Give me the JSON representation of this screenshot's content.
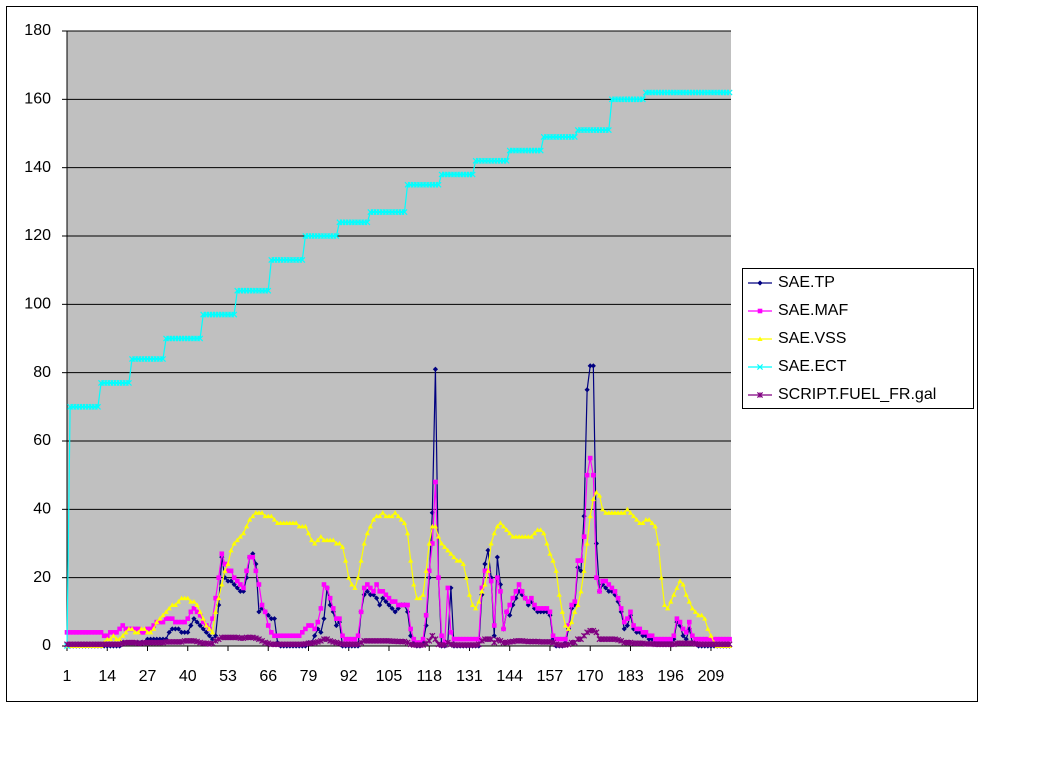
{
  "chart_data": {
    "type": "line",
    "categories": [
      1,
      null,
      null,
      null,
      null,
      null,
      null,
      null,
      null,
      null,
      null,
      null,
      null,
      14,
      null,
      null,
      null,
      null,
      null,
      null,
      null,
      null,
      null,
      null,
      null,
      null,
      27,
      null,
      null,
      null,
      null,
      null,
      null,
      null,
      null,
      null,
      null,
      null,
      null,
      40,
      null,
      null,
      null,
      null,
      null,
      null,
      null,
      null,
      null,
      null,
      null,
      null,
      53,
      null,
      null,
      null,
      null,
      null,
      null,
      null,
      null,
      null,
      null,
      null,
      null,
      66,
      null,
      null,
      null,
      null,
      null,
      null,
      null,
      null,
      null,
      null,
      null,
      null,
      79,
      null,
      null,
      null,
      null,
      null,
      null,
      null,
      null,
      null,
      null,
      null,
      null,
      92,
      null,
      null,
      null,
      null,
      null,
      null,
      null,
      null,
      null,
      null,
      null,
      null,
      105,
      null,
      null,
      null,
      null,
      null,
      null,
      null,
      null,
      null,
      null,
      null,
      null,
      118,
      null,
      null,
      null,
      null,
      null,
      null,
      null,
      null,
      null,
      null,
      null,
      null,
      131,
      null,
      null,
      null,
      null,
      null,
      null,
      null,
      null,
      null,
      null,
      null,
      null,
      144,
      null,
      null,
      null,
      null,
      null,
      null,
      null,
      null,
      null,
      null,
      null,
      null,
      157,
      null,
      null,
      null,
      null,
      null,
      null,
      null,
      null,
      null,
      null,
      null,
      null,
      170,
      null,
      null,
      null,
      null,
      null,
      null,
      null,
      null,
      null,
      null,
      null,
      null,
      183,
      null,
      null,
      null,
      null,
      null,
      null,
      null,
      null,
      null,
      null,
      null,
      null,
      196,
      null,
      null,
      null,
      null,
      null,
      null,
      null,
      null,
      null,
      null,
      null,
      null,
      209,
      null,
      null,
      null,
      null,
      null,
      null
    ],
    "series": [
      {
        "name": "SAE.TP",
        "color": "#000080",
        "marker": "diamond",
        "values": [
          0,
          0,
          0,
          0,
          0,
          0,
          0,
          0,
          0,
          0,
          0,
          0,
          0,
          0,
          0,
          0,
          0,
          0,
          1,
          1,
          1,
          1,
          1,
          1,
          1,
          1,
          2,
          2,
          2,
          2,
          2,
          2,
          2,
          4,
          5,
          5,
          5,
          4,
          4,
          4,
          6,
          8,
          7,
          6,
          5,
          4,
          3,
          2,
          3,
          12,
          26,
          20,
          19,
          19,
          18,
          17,
          16,
          16,
          20,
          26,
          27,
          24,
          10,
          11,
          10,
          9,
          8,
          8,
          1,
          0,
          0,
          0,
          0,
          0,
          0,
          0,
          0,
          0,
          1,
          1,
          3,
          5,
          4,
          8,
          17,
          12,
          10,
          6,
          7,
          0,
          0,
          0,
          0,
          0,
          0,
          10,
          15,
          16,
          15,
          15,
          14,
          12,
          14,
          13,
          12,
          11,
          10,
          11,
          12,
          12,
          10,
          3,
          1,
          0,
          0,
          1,
          6,
          20,
          39,
          81,
          20,
          0,
          0,
          1,
          17,
          0,
          0,
          0,
          0,
          0,
          0,
          0,
          0,
          0,
          15,
          24,
          28,
          20,
          3,
          26,
          18,
          5,
          10,
          9,
          12,
          14,
          16,
          15,
          14,
          12,
          13,
          11,
          10,
          10,
          10,
          10,
          9,
          2,
          0,
          0,
          0,
          1,
          5,
          11,
          12,
          23,
          22,
          38,
          75,
          82,
          82,
          30,
          16,
          18,
          17,
          16,
          16,
          15,
          13,
          10,
          5,
          6,
          9,
          5,
          4,
          4,
          3,
          3,
          2,
          2,
          1,
          1,
          1,
          1,
          1,
          1,
          2,
          7,
          6,
          3,
          2,
          5,
          1,
          1,
          0,
          0,
          0,
          0,
          0,
          0,
          0,
          0,
          0,
          0,
          0
        ]
      },
      {
        "name": "SAE.MAF",
        "color": "#ff00ff",
        "marker": "square",
        "values": [
          4,
          4,
          4,
          4,
          4,
          4,
          4,
          4,
          4,
          4,
          4,
          4,
          3,
          3,
          4,
          4,
          4,
          5,
          6,
          5,
          5,
          5,
          5,
          5,
          4,
          4,
          5,
          5,
          6,
          7,
          7,
          7,
          8,
          8,
          8,
          7,
          7,
          7,
          7,
          8,
          10,
          11,
          10,
          9,
          7,
          6,
          5,
          8,
          14,
          20,
          27,
          24,
          22,
          22,
          20,
          19,
          18,
          17,
          22,
          26,
          26,
          22,
          18,
          12,
          10,
          6,
          4,
          3,
          3,
          3,
          3,
          3,
          3,
          3,
          3,
          3,
          4,
          5,
          6,
          6,
          5,
          7,
          11,
          18,
          17,
          14,
          11,
          8,
          8,
          3,
          2,
          2,
          2,
          2,
          3,
          10,
          17,
          18,
          17,
          16,
          18,
          16,
          16,
          15,
          14,
          13,
          13,
          12,
          12,
          12,
          12,
          5,
          2,
          1,
          1,
          2,
          9,
          22,
          30,
          48,
          20,
          3,
          1,
          17,
          4,
          2,
          2,
          2,
          2,
          2,
          2,
          2,
          2,
          2,
          17,
          22,
          22,
          19,
          6,
          20,
          16,
          5,
          10,
          12,
          14,
          16,
          18,
          16,
          14,
          13,
          14,
          12,
          11,
          11,
          11,
          11,
          10,
          3,
          2,
          2,
          2,
          2,
          6,
          12,
          13,
          25,
          25,
          32,
          50,
          55,
          50,
          20,
          16,
          19,
          19,
          18,
          17,
          16,
          14,
          11,
          7,
          8,
          10,
          6,
          5,
          5,
          4,
          4,
          3,
          3,
          2,
          2,
          2,
          2,
          2,
          2,
          3,
          8,
          7,
          5,
          4,
          7,
          3,
          2,
          2,
          2,
          2,
          2,
          2,
          2,
          2,
          2,
          2,
          2,
          2
        ]
      },
      {
        "name": "SAE.VSS",
        "color": "#ffff00",
        "marker": "triangle",
        "values": [
          0,
          0,
          0,
          0,
          0,
          0,
          0,
          0,
          0,
          0,
          0,
          0,
          1,
          2,
          2,
          3,
          2,
          2,
          3,
          4,
          5,
          5,
          4,
          4,
          5,
          5,
          4,
          4,
          5,
          7,
          8,
          9,
          10,
          11,
          12,
          12,
          13,
          14,
          14,
          14,
          13,
          13,
          12,
          10,
          8,
          6,
          5,
          4,
          10,
          14,
          18,
          22,
          24,
          28,
          30,
          31,
          32,
          33,
          35,
          37,
          38,
          39,
          39,
          39,
          38,
          38,
          38,
          37,
          36,
          36,
          36,
          36,
          36,
          36,
          36,
          35,
          35,
          35,
          33,
          31,
          30,
          31,
          32,
          31,
          31,
          31,
          31,
          30,
          30,
          29,
          25,
          20,
          18,
          17,
          20,
          25,
          30,
          33,
          35,
          37,
          38,
          38,
          39,
          38,
          38,
          38,
          39,
          38,
          37,
          36,
          33,
          25,
          18,
          14,
          14,
          15,
          22,
          30,
          35,
          35,
          32,
          30,
          29,
          28,
          27,
          26,
          25,
          25,
          24,
          20,
          15,
          12,
          11,
          13,
          16,
          18,
          22,
          30,
          33,
          35,
          36,
          35,
          34,
          33,
          32,
          32,
          32,
          32,
          32,
          32,
          32,
          33,
          34,
          34,
          33,
          30,
          27,
          25,
          22,
          15,
          10,
          6,
          5,
          7,
          10,
          12,
          16,
          22,
          30,
          38,
          43,
          45,
          44,
          40,
          39,
          39,
          39,
          39,
          39,
          39,
          39,
          40,
          39,
          38,
          37,
          36,
          36,
          37,
          37,
          36,
          35,
          30,
          20,
          12,
          11,
          13,
          15,
          17,
          19,
          18,
          15,
          13,
          11,
          10,
          9,
          9,
          8,
          5,
          3,
          1,
          0,
          0,
          0,
          0,
          0
        ]
      },
      {
        "name": "SAE.ECT",
        "color": "#00ffff",
        "marker": "asterisk",
        "values": [
          0,
          70,
          70,
          70,
          70,
          70,
          70,
          70,
          70,
          70,
          70,
          77,
          77,
          77,
          77,
          77,
          77,
          77,
          77,
          77,
          77,
          84,
          84,
          84,
          84,
          84,
          84,
          84,
          84,
          84,
          84,
          84,
          90,
          90,
          90,
          90,
          90,
          90,
          90,
          90,
          90,
          90,
          90,
          90,
          97,
          97,
          97,
          97,
          97,
          97,
          97,
          97,
          97,
          97,
          97,
          104,
          104,
          104,
          104,
          104,
          104,
          104,
          104,
          104,
          104,
          104,
          113,
          113,
          113,
          113,
          113,
          113,
          113,
          113,
          113,
          113,
          113,
          120,
          120,
          120,
          120,
          120,
          120,
          120,
          120,
          120,
          120,
          120,
          124,
          124,
          124,
          124,
          124,
          124,
          124,
          124,
          124,
          124,
          127,
          127,
          127,
          127,
          127,
          127,
          127,
          127,
          127,
          127,
          127,
          127,
          135,
          135,
          135,
          135,
          135,
          135,
          135,
          135,
          135,
          135,
          135,
          138,
          138,
          138,
          138,
          138,
          138,
          138,
          138,
          138,
          138,
          138,
          142,
          142,
          142,
          142,
          142,
          142,
          142,
          142,
          142,
          142,
          142,
          145,
          145,
          145,
          145,
          145,
          145,
          145,
          145,
          145,
          145,
          145,
          149,
          149,
          149,
          149,
          149,
          149,
          149,
          149,
          149,
          149,
          149,
          151,
          151,
          151,
          151,
          151,
          151,
          151,
          151,
          151,
          151,
          151,
          160,
          160,
          160,
          160,
          160,
          160,
          160,
          160,
          160,
          160,
          160,
          162,
          162,
          162,
          162,
          162,
          162,
          162,
          162,
          162,
          162,
          162,
          162,
          162,
          162,
          162,
          162,
          162,
          162,
          162,
          162,
          162,
          162,
          162,
          162,
          162,
          162,
          162,
          162
        ]
      },
      {
        "name": "SCRIPT.FUEL_FR.gal",
        "color": "#800080",
        "marker": "star",
        "values": [
          0.5,
          0.5,
          0.5,
          0.5,
          0.5,
          0.5,
          0.5,
          0.5,
          0.5,
          0.5,
          0.5,
          0.5,
          0.5,
          0.5,
          0.5,
          0.5,
          0.5,
          0.5,
          0.8,
          1,
          1,
          1,
          1,
          0.8,
          0.8,
          1,
          1,
          1,
          1,
          1,
          1,
          1,
          1.2,
          1.2,
          1.2,
          1.2,
          1.2,
          1.2,
          1.5,
          1.5,
          1.5,
          1.5,
          1.3,
          1,
          0.8,
          0.8,
          0.6,
          0.8,
          1.5,
          2,
          2.5,
          2.5,
          2.5,
          2.5,
          2.5,
          2.5,
          2.3,
          2.3,
          2.5,
          2.5,
          2.5,
          2.3,
          2,
          1.5,
          1,
          0.8,
          0.5,
          0.5,
          0.5,
          0.5,
          0.5,
          0.5,
          0.5,
          0.5,
          0.5,
          0.5,
          0.5,
          0.6,
          0.8,
          0.8,
          1,
          1.2,
          1.5,
          2,
          2,
          1.5,
          1.2,
          1,
          0.8,
          0.5,
          0.5,
          0.5,
          0.5,
          0.5,
          0.5,
          1,
          1.5,
          1.5,
          1.5,
          1.5,
          1.5,
          1.5,
          1.5,
          1.5,
          1.5,
          1.4,
          1.4,
          1.3,
          1.3,
          1.3,
          1,
          0.5,
          0.3,
          0.3,
          0.3,
          0.3,
          0.8,
          1.5,
          3,
          2,
          0.5,
          0.3,
          0.3,
          1,
          0.5,
          0.3,
          0.3,
          0.3,
          0.3,
          0.3,
          0.3,
          0.3,
          0.3,
          0.5,
          1.5,
          2,
          2,
          2,
          1,
          1.8,
          1.5,
          1,
          1,
          1.2,
          1.3,
          1.5,
          1.5,
          1.5,
          1.4,
          1.3,
          1.3,
          1.3,
          1.3,
          1.2,
          1.2,
          1.2,
          1.2,
          1,
          0.5,
          0.3,
          0.3,
          0.3,
          0.5,
          1,
          1,
          2,
          2,
          3,
          4,
          4.5,
          4.5,
          4,
          2,
          2,
          2,
          2,
          2,
          2,
          1.8,
          1.5,
          1,
          1,
          1,
          0.8,
          0.8,
          0.8,
          0.8,
          0.6,
          0.6,
          0.6,
          0.5,
          0.5,
          0.5,
          0.5,
          0.5,
          0.5,
          0.5,
          0.8,
          0.8,
          0.8,
          0.8,
          0.8,
          0.8,
          0.6,
          0.5,
          0.5,
          0.5,
          0.5,
          0.5,
          0.5,
          0.5,
          0.5,
          0.5,
          0.5,
          0.5
        ]
      }
    ],
    "ylim": [
      0,
      180
    ],
    "yticks": [
      0,
      20,
      40,
      60,
      80,
      100,
      120,
      140,
      160,
      180
    ],
    "grid": true,
    "legend": "right",
    "plot_background": "#c0c0c0"
  }
}
